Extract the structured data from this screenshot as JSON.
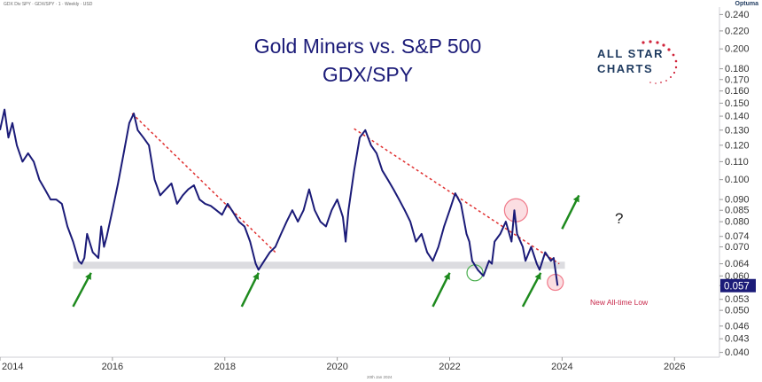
{
  "header": {
    "symbol_line": "GDX Div SPY · GDX/SPY · 1 · Weekly · USD",
    "brand": "Optuma"
  },
  "title_lines": [
    "Gold Miners vs. S&P 500",
    "GDX/SPY"
  ],
  "logo": {
    "line1": "ALL STAR",
    "line2": "CHARTS"
  },
  "annotations": {
    "low_label": "New All-time Low",
    "question": "?"
  },
  "footer_date": "20th Jan 2024",
  "price_label": "0.057",
  "colors": {
    "series": "#1b1b78",
    "trendline": "#e03030",
    "support": "#dcdce0",
    "arrow": "#1e8a1e",
    "circle_red": "#f07a8a",
    "circle_green": "#4caf50",
    "price_box": "#1b1b78"
  },
  "chart_data": {
    "type": "line",
    "title": "Gold Miners vs. S&P 500 GDX/SPY",
    "scale": "log",
    "ylim": [
      0.039,
      0.245
    ],
    "xlim": [
      2014.0,
      2026.8
    ],
    "x_ticks": [
      "2014",
      "2016",
      "2018",
      "2020",
      "2022",
      "2024",
      "2026"
    ],
    "y_ticks": [
      "0.240",
      "0.220",
      "0.200",
      "0.180",
      "0.170",
      "0.160",
      "0.150",
      "0.140",
      "0.130",
      "0.120",
      "0.110",
      "0.100",
      "0.090",
      "0.085",
      "0.080",
      "0.074",
      "0.070",
      "0.064",
      "0.060",
      "0.057",
      "0.053",
      "0.050",
      "0.046",
      "0.043",
      "0.040"
    ],
    "series": [
      {
        "x": [
          2014.0,
          2014.08,
          2014.15,
          2014.22,
          2014.3,
          2014.4,
          2014.5,
          2014.6,
          2014.7,
          2014.8,
          2014.9,
          2015.0,
          2015.1,
          2015.2,
          2015.3,
          2015.4,
          2015.45,
          2015.5,
          2015.55,
          2015.65,
          2015.75,
          2015.8,
          2015.85,
          2015.9,
          2016.0,
          2016.1,
          2016.2,
          2016.3,
          2016.38,
          2016.45,
          2016.55,
          2016.65,
          2016.75,
          2016.85,
          2016.95,
          2017.05,
          2017.15,
          2017.25,
          2017.35,
          2017.45,
          2017.55,
          2017.65,
          2017.75,
          2017.85,
          2017.95,
          2018.05,
          2018.15,
          2018.25,
          2018.35,
          2018.45,
          2018.55,
          2018.6,
          2018.7,
          2018.8,
          2018.9,
          2019.0,
          2019.1,
          2019.2,
          2019.3,
          2019.4,
          2019.5,
          2019.6,
          2019.7,
          2019.8,
          2019.9,
          2020.0,
          2020.1,
          2020.15,
          2020.2,
          2020.3,
          2020.4,
          2020.5,
          2020.6,
          2020.7,
          2020.8,
          2020.9,
          2021.0,
          2021.1,
          2021.2,
          2021.3,
          2021.4,
          2021.5,
          2021.6,
          2021.7,
          2021.8,
          2021.9,
          2022.0,
          2022.1,
          2022.2,
          2022.3,
          2022.35,
          2022.4,
          2022.5,
          2022.6,
          2022.7,
          2022.75,
          2022.8,
          2022.9,
          2023.0,
          2023.1,
          2023.15,
          2023.2,
          2023.3,
          2023.35,
          2023.45,
          2023.55,
          2023.6,
          2023.7,
          2023.8,
          2023.85,
          2023.92
        ],
        "y": [
          0.13,
          0.145,
          0.125,
          0.135,
          0.12,
          0.11,
          0.115,
          0.11,
          0.1,
          0.095,
          0.09,
          0.09,
          0.088,
          0.078,
          0.072,
          0.065,
          0.064,
          0.066,
          0.075,
          0.068,
          0.066,
          0.078,
          0.07,
          0.074,
          0.085,
          0.098,
          0.115,
          0.135,
          0.142,
          0.13,
          0.125,
          0.12,
          0.1,
          0.092,
          0.095,
          0.098,
          0.088,
          0.092,
          0.095,
          0.097,
          0.09,
          0.088,
          0.087,
          0.085,
          0.083,
          0.088,
          0.084,
          0.08,
          0.078,
          0.072,
          0.064,
          0.062,
          0.065,
          0.068,
          0.07,
          0.075,
          0.08,
          0.085,
          0.08,
          0.085,
          0.095,
          0.085,
          0.08,
          0.078,
          0.085,
          0.09,
          0.082,
          0.072,
          0.085,
          0.105,
          0.125,
          0.13,
          0.12,
          0.115,
          0.105,
          0.1,
          0.095,
          0.09,
          0.085,
          0.08,
          0.072,
          0.075,
          0.068,
          0.065,
          0.07,
          0.078,
          0.085,
          0.093,
          0.088,
          0.075,
          0.072,
          0.065,
          0.062,
          0.06,
          0.065,
          0.064,
          0.072,
          0.075,
          0.08,
          0.072,
          0.085,
          0.075,
          0.07,
          0.065,
          0.07,
          0.064,
          0.062,
          0.068,
          0.065,
          0.066,
          0.057
        ]
      }
    ],
    "trendlines": [
      {
        "x": [
          2016.35,
          2018.9
        ],
        "y": [
          0.142,
          0.068
        ]
      },
      {
        "x": [
          2020.3,
          2023.95
        ],
        "y": [
          0.131,
          0.064
        ]
      }
    ],
    "support_level": 0.0635,
    "last_value": 0.057,
    "arrows": [
      {
        "x1": 2015.3,
        "y1": 0.051,
        "x2": 2015.62,
        "y2": 0.061
      },
      {
        "x1": 2018.3,
        "y1": 0.051,
        "x2": 2018.6,
        "y2": 0.061
      },
      {
        "x1": 2021.7,
        "y1": 0.051,
        "x2": 2022.0,
        "y2": 0.061
      },
      {
        "x1": 2023.3,
        "y1": 0.051,
        "x2": 2023.62,
        "y2": 0.061
      },
      {
        "x1": 2024.0,
        "y1": 0.077,
        "x2": 2024.3,
        "y2": 0.092
      }
    ],
    "circles": [
      {
        "x": 2023.18,
        "y": 0.085,
        "kind": "red"
      },
      {
        "x": 2023.88,
        "y": 0.058,
        "kind": "red"
      },
      {
        "x": 2022.45,
        "y": 0.061,
        "kind": "green"
      }
    ]
  }
}
